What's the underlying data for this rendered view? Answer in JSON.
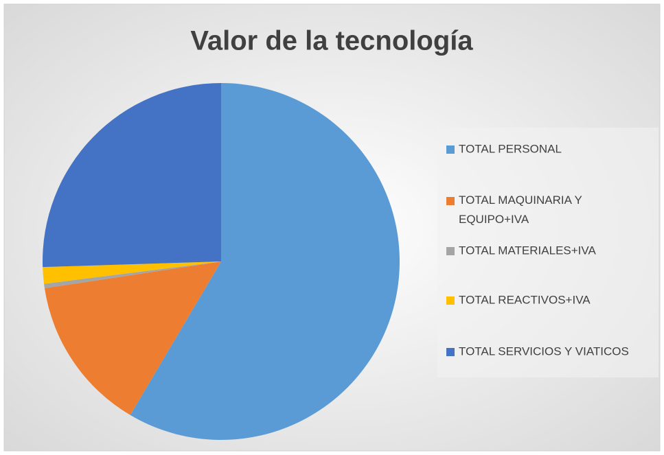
{
  "chart_data": {
    "type": "pie",
    "title": "Valor de la tecnología",
    "categories": [
      "TOTAL PERSONAL",
      "TOTAL MAQUINARIA Y EQUIPO+IVA",
      "TOTAL MATERIALES+IVA",
      "TOTAL REACTIVOS+IVA",
      "TOTAL SERVICIOS Y VIATICOS"
    ],
    "values": [
      58.5,
      14.1,
      0.4,
      1.5,
      25.5
    ],
    "colors": [
      "#5b9bd5",
      "#ed7d31",
      "#a5a5a5",
      "#ffc000",
      "#4472c4"
    ],
    "legend": "right"
  }
}
